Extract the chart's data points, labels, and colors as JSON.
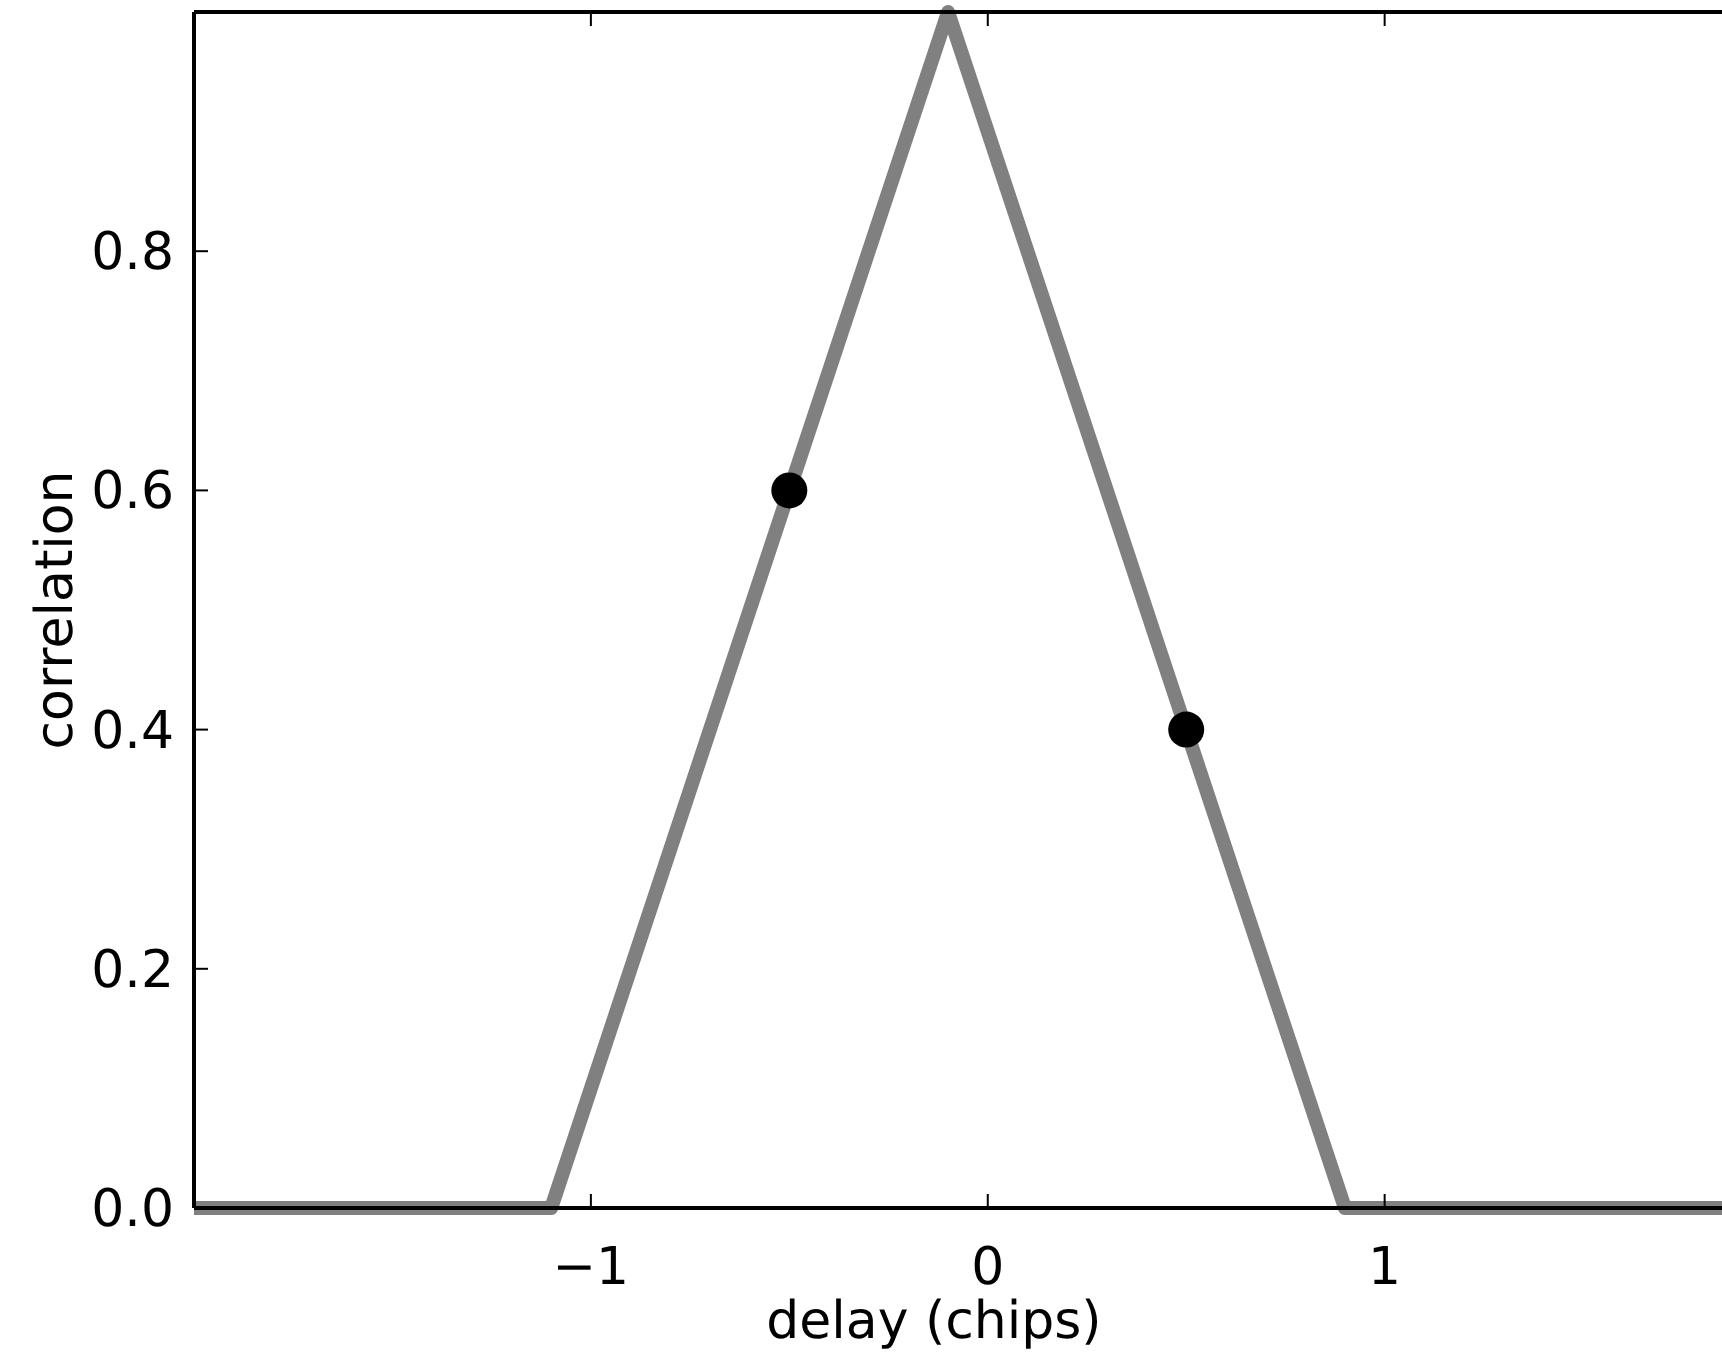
{
  "chart_data": {
    "type": "line",
    "xlabel": "delay (chips)",
    "ylabel": "correlation",
    "xlim": [
      -2,
      1.85
    ],
    "ylim": [
      0,
      1
    ],
    "xticks": [
      {
        "value": -1,
        "label": "−1"
      },
      0,
      1
    ],
    "yticks": [
      {
        "value": 0,
        "label": "0.0"
      },
      0.2,
      0.4,
      0.6,
      0.8
    ],
    "grid": false,
    "series": [
      {
        "color": "#808080",
        "x": [
          -2,
          -1.1,
          -0.1,
          0.9,
          1.85
        ],
        "values": [
          0,
          0,
          1,
          0,
          0
        ],
        "marker": "none",
        "line_style": "solid"
      },
      {
        "type": "scatter",
        "color": "#000000",
        "x": [
          -0.5,
          0.5
        ],
        "values": [
          0.6,
          0.4
        ],
        "marker": "circle"
      }
    ]
  }
}
